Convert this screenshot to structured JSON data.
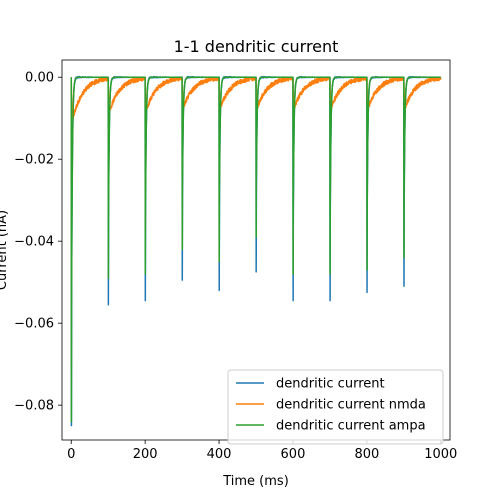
{
  "chart_data": {
    "type": "line",
    "title": "1-1 dendritic current",
    "xlabel": "Time (ms)",
    "ylabel": "Current (nA)",
    "xlim": [
      -25,
      1025
    ],
    "ylim": [
      -0.0885,
      0.0042
    ],
    "xticks": [
      0,
      200,
      400,
      600,
      800,
      1000
    ],
    "xtick_labels": [
      "0",
      "200",
      "400",
      "600",
      "800",
      "1000"
    ],
    "yticks": [
      0.0,
      -0.02,
      -0.04,
      -0.06,
      -0.08
    ],
    "ytick_labels": [
      "0.00",
      "−0.02",
      "−0.04",
      "−0.06",
      "−0.08"
    ],
    "grid": false,
    "legend_position": "lower-right",
    "pulse_times": [
      0,
      100,
      200,
      300,
      400,
      500,
      600,
      700,
      800,
      900
    ],
    "series": [
      {
        "name": "dendritic current",
        "color": "#1f77b4",
        "peaks": [
          -0.085,
          -0.0555,
          -0.0545,
          -0.0495,
          -0.052,
          -0.0475,
          -0.0545,
          -0.0545,
          -0.0525,
          -0.051
        ]
      },
      {
        "name": "dendritic current nmda",
        "color": "#ff7f0e",
        "peaks": [
          -0.012,
          -0.0095,
          -0.009,
          -0.0085,
          -0.0085,
          -0.0085,
          -0.0085,
          -0.0085,
          -0.0085,
          -0.0085
        ]
      },
      {
        "name": "dendritic current ampa",
        "color": "#2ca02c",
        "peaks": [
          -0.084,
          -0.049,
          -0.048,
          -0.042,
          -0.045,
          -0.039,
          -0.048,
          -0.048,
          -0.047,
          -0.044
        ]
      }
    ]
  }
}
